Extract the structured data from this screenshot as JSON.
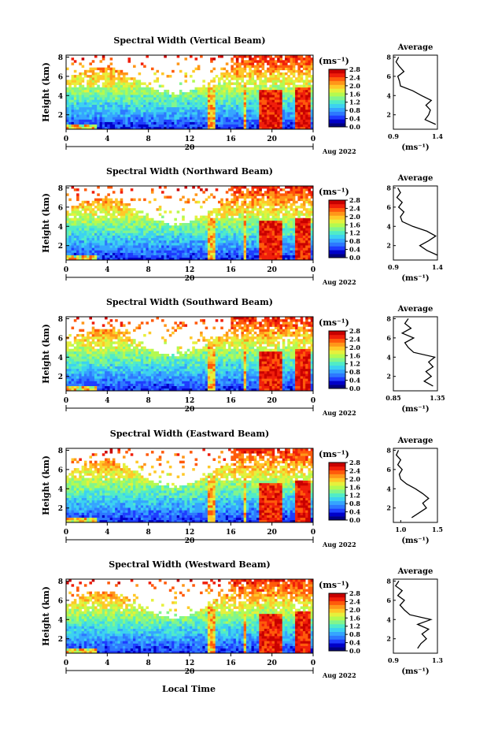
{
  "figure": {
    "shared_xlabel": "Local Time",
    "date_label": "Aug 2022",
    "day_label": "20",
    "height_label": "Height (km)",
    "unit_label": "(ms⁻¹)",
    "average_title": "Average"
  },
  "colorbar": {
    "colors": [
      "#000080",
      "#0000c8",
      "#1e3cff",
      "#2d78ff",
      "#35a5ff",
      "#3cd2f0",
      "#50ebc8",
      "#82f58c",
      "#b4fa50",
      "#e6f03c",
      "#ffc828",
      "#ff9619",
      "#ff5a0a",
      "#f01e0a",
      "#c80000"
    ],
    "min": 0.0,
    "max": 2.8
  },
  "chart_data": [
    {
      "type": "heatmap",
      "title": "Spectral Width (Vertical Beam)",
      "ylabel": "Height (km)",
      "xlabel": "Local Time",
      "x_ticks": [
        "0",
        "4",
        "8",
        "12",
        "16",
        "20",
        "0"
      ],
      "y_ticks": [
        "2",
        "4",
        "6",
        "8"
      ],
      "xlim": [
        0,
        24
      ],
      "ylim": [
        0.5,
        8.2
      ],
      "colorbar_ticks": [
        "0.0",
        "0.4",
        "0.8",
        "1.2",
        "1.6",
        "2.0",
        "2.4",
        "2.8"
      ],
      "colorbar_label": "(ms⁻¹)",
      "average_profile": {
        "title": "Average",
        "xlabel": "(ms⁻¹)",
        "x_ticks": [
          "0.9",
          "1.4"
        ],
        "xlim": [
          0.9,
          1.4
        ],
        "y_ticks": [
          "2",
          "4",
          "6",
          "8"
        ],
        "height": [
          1,
          1.5,
          2,
          2.5,
          3,
          3.5,
          4,
          4.5,
          5,
          5.5,
          6,
          6.5,
          7,
          7.5,
          8
        ],
        "value": [
          1.38,
          1.26,
          1.3,
          1.32,
          1.27,
          1.33,
          1.22,
          1.12,
          0.98,
          0.97,
          0.95,
          1.02,
          0.97,
          0.93,
          0.96
        ]
      }
    },
    {
      "type": "heatmap",
      "title": "Spectral Width (Northward Beam)",
      "ylabel": "Height (km)",
      "xlabel": "Local Time",
      "x_ticks": [
        "0",
        "4",
        "8",
        "12",
        "16",
        "20",
        "0"
      ],
      "y_ticks": [
        "2",
        "4",
        "6",
        "8"
      ],
      "xlim": [
        0,
        24
      ],
      "ylim": [
        0.5,
        8.2
      ],
      "colorbar_ticks": [
        "0.0",
        "0.4",
        "0.8",
        "1.2",
        "1.6",
        "2.0",
        "2.4",
        "2.8"
      ],
      "colorbar_label": "(ms⁻¹)",
      "average_profile": {
        "title": "Average",
        "xlabel": "(ms⁻¹)",
        "x_ticks": [
          "0.9",
          "1.4"
        ],
        "xlim": [
          0.9,
          1.4
        ],
        "y_ticks": [
          "2",
          "4",
          "6",
          "8"
        ],
        "height": [
          1,
          1.5,
          2,
          2.5,
          3,
          3.5,
          4,
          4.5,
          5,
          5.5,
          6,
          6.5,
          7,
          7.5,
          8
        ],
        "value": [
          1.4,
          1.28,
          1.2,
          1.3,
          1.38,
          1.28,
          1.12,
          1.0,
          0.98,
          1.02,
          0.96,
          1.0,
          0.94,
          0.98,
          0.95
        ]
      }
    },
    {
      "type": "heatmap",
      "title": "Spectral Width (Southward Beam)",
      "ylabel": "Height (km)",
      "xlabel": "Local Time",
      "x_ticks": [
        "0",
        "4",
        "8",
        "12",
        "16",
        "20",
        "0"
      ],
      "y_ticks": [
        "2",
        "4",
        "6",
        "8"
      ],
      "xlim": [
        0,
        24
      ],
      "ylim": [
        0.5,
        8.2
      ],
      "colorbar_ticks": [
        "0.0",
        "0.4",
        "0.8",
        "1.2",
        "1.6",
        "2.0",
        "2.4",
        "2.8"
      ],
      "colorbar_label": "(ms⁻¹)",
      "average_profile": {
        "title": "Average",
        "xlabel": "(ms⁻¹)",
        "x_ticks": [
          "0.85",
          "1.35"
        ],
        "xlim": [
          0.85,
          1.35
        ],
        "y_ticks": [
          "2",
          "4",
          "6",
          "8"
        ],
        "height": [
          1,
          1.5,
          2,
          2.5,
          3,
          3.5,
          4,
          4.5,
          5,
          5.5,
          6,
          6.5,
          7,
          7.5,
          8
        ],
        "value": [
          1.3,
          1.2,
          1.28,
          1.22,
          1.3,
          1.25,
          1.32,
          1.08,
          1.02,
          0.98,
          1.08,
          0.95,
          1.05,
          0.98,
          1.02
        ]
      }
    },
    {
      "type": "heatmap",
      "title": "Spectral Width (Eastward Beam)",
      "ylabel": "Height (km)",
      "xlabel": "Local Time",
      "x_ticks": [
        "0",
        "4",
        "8",
        "12",
        "16",
        "20",
        "0"
      ],
      "y_ticks": [
        "2",
        "4",
        "6",
        "8"
      ],
      "xlim": [
        0,
        24
      ],
      "ylim": [
        0.5,
        8.2
      ],
      "colorbar_ticks": [
        "0.0",
        "0.4",
        "0.8",
        "1.2",
        "1.6",
        "2.0",
        "2.4",
        "2.8"
      ],
      "colorbar_label": "(ms⁻¹)",
      "average_profile": {
        "title": "Average",
        "xlabel": "(ms⁻¹)",
        "x_ticks": [
          "1.0",
          "1.5"
        ],
        "xlim": [
          0.9,
          1.5
        ],
        "y_ticks": [
          "2",
          "4",
          "6",
          "8"
        ],
        "height": [
          1,
          1.5,
          2,
          2.5,
          3,
          3.5,
          4,
          4.5,
          5,
          5.5,
          6,
          6.5,
          7,
          7.5,
          8
        ],
        "value": [
          1.15,
          1.25,
          1.35,
          1.3,
          1.38,
          1.3,
          1.2,
          1.08,
          1.0,
          0.98,
          1.02,
          0.96,
          1.0,
          0.94,
          0.97
        ]
      }
    },
    {
      "type": "heatmap",
      "title": "Spectral Width (Westward Beam)",
      "ylabel": "Height (km)",
      "xlabel": "Local Time",
      "x_ticks": [
        "0",
        "4",
        "8",
        "12",
        "16",
        "20",
        "0"
      ],
      "y_ticks": [
        "2",
        "4",
        "6",
        "8"
      ],
      "xlim": [
        0,
        24
      ],
      "ylim": [
        0.5,
        8.2
      ],
      "colorbar_ticks": [
        "0.0",
        "0.4",
        "0.8",
        "1.2",
        "1.6",
        "2.0",
        "2.4",
        "2.8"
      ],
      "colorbar_label": "(ms⁻¹)",
      "average_profile": {
        "title": "Average",
        "xlabel": "(ms⁻¹)",
        "x_ticks": [
          "0.9",
          "1.3"
        ],
        "xlim": [
          0.9,
          1.3
        ],
        "y_ticks": [
          "2",
          "4",
          "6",
          "8"
        ],
        "height": [
          1,
          1.5,
          2,
          2.5,
          3,
          3.5,
          4,
          4.5,
          5,
          5.5,
          6,
          6.5,
          7,
          7.5,
          8
        ],
        "value": [
          1.12,
          1.15,
          1.2,
          1.16,
          1.22,
          1.12,
          1.24,
          1.05,
          1.0,
          0.96,
          1.0,
          0.94,
          0.98,
          0.92,
          0.95
        ]
      }
    }
  ]
}
